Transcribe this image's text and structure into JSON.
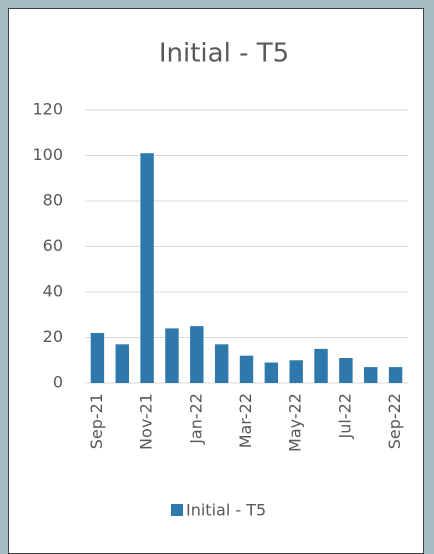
{
  "chart_data": {
    "type": "bar",
    "title": "Initial - T5",
    "categories": [
      "Sep-21",
      null,
      "Nov-21",
      null,
      "Jan-22",
      null,
      "Mar-22",
      null,
      "May-22",
      null,
      "Jul-22",
      null,
      "Sep-22"
    ],
    "series": [
      {
        "name": "Initial - T5",
        "color": "#2e78ab",
        "values": [
          22,
          17,
          101,
          24,
          25,
          17,
          12,
          9,
          10,
          15,
          11,
          7,
          7
        ]
      }
    ],
    "ylim": [
      0,
      120
    ],
    "yticks": [
      0,
      20,
      40,
      60,
      80,
      100,
      120
    ],
    "grid": true,
    "legend": "bottom"
  }
}
